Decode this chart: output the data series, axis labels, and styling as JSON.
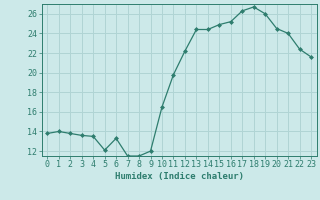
{
  "x": [
    0,
    1,
    2,
    3,
    4,
    5,
    6,
    7,
    8,
    9,
    10,
    11,
    12,
    13,
    14,
    15,
    16,
    17,
    18,
    19,
    20,
    21,
    22,
    23
  ],
  "y": [
    13.8,
    14.0,
    13.8,
    13.6,
    13.5,
    12.1,
    13.3,
    11.5,
    11.5,
    12.0,
    16.5,
    19.8,
    22.2,
    24.4,
    24.4,
    24.9,
    25.2,
    26.3,
    26.7,
    26.0,
    24.5,
    24.0,
    22.4,
    21.6
  ],
  "line_color": "#2e7d6e",
  "marker": "D",
  "marker_size": 2.0,
  "bg_color": "#cce9e9",
  "grid_color": "#b0d4d4",
  "xlabel": "Humidex (Indice chaleur)",
  "ylim": [
    11.5,
    27.0
  ],
  "xlim": [
    -0.5,
    23.5
  ],
  "yticks": [
    12,
    14,
    16,
    18,
    20,
    22,
    24,
    26
  ],
  "xtick_labels": [
    "0",
    "1",
    "2",
    "3",
    "4",
    "5",
    "6",
    "7",
    "8",
    "9",
    "10",
    "11",
    "12",
    "13",
    "14",
    "15",
    "16",
    "17",
    "18",
    "19",
    "20",
    "21",
    "22",
    "23"
  ],
  "label_fontsize": 6.5,
  "tick_fontsize": 6.0
}
